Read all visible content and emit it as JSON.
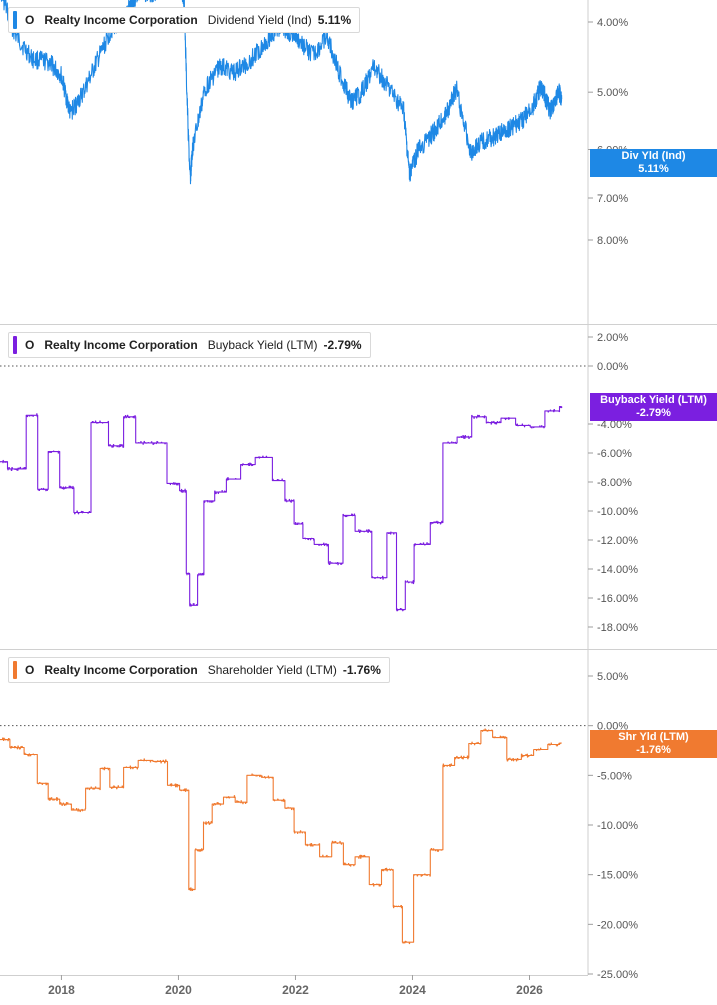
{
  "chart_data": [
    {
      "type": "line",
      "panel": "top",
      "ticker": "O",
      "company": "Realty Income Corporation",
      "metric": "Dividend Yield (Ind)",
      "current_value": "5.11%",
      "badge": {
        "label": "Div Yld (Ind)",
        "value": "5.11%"
      },
      "color": "#1e88e5",
      "scale": "log",
      "ylim": [
        3.0,
        9.0
      ],
      "yticks": [
        4,
        5,
        6,
        7,
        8
      ],
      "ytick_labels": [
        "4.00%",
        "5.00%",
        "6.00%",
        "7.00%",
        "8.00%"
      ],
      "zero_line": false,
      "step": false,
      "x": [
        2016.95,
        2017.2,
        2017.5,
        2017.8,
        2018.0,
        2018.15,
        2018.35,
        2018.6,
        2018.85,
        2019.1,
        2019.3,
        2019.55,
        2019.7,
        2019.95,
        2020.1,
        2020.2,
        2020.25,
        2020.45,
        2020.7,
        2020.95,
        2021.2,
        2021.5,
        2021.75,
        2022.0,
        2022.3,
        2022.55,
        2022.75,
        2022.95,
        2023.1,
        2023.35,
        2023.6,
        2023.85,
        2023.95,
        2024.1,
        2024.35,
        2024.55,
        2024.75,
        2025.0,
        2025.2,
        2025.45,
        2025.65,
        2025.85,
        2026.05,
        2026.2,
        2026.35,
        2026.5,
        2026.55
      ],
      "values": [
        3.6,
        4.15,
        4.5,
        4.55,
        4.75,
        5.35,
        5.05,
        4.55,
        4.1,
        3.9,
        3.65,
        3.65,
        3.6,
        3.35,
        3.75,
        6.6,
        5.9,
        4.95,
        4.6,
        4.7,
        4.55,
        4.25,
        4.05,
        4.2,
        4.45,
        4.2,
        4.7,
        5.15,
        5.05,
        4.6,
        4.95,
        5.3,
        6.5,
        6.0,
        5.7,
        5.4,
        4.95,
        6.05,
        5.85,
        5.75,
        5.6,
        5.5,
        5.25,
        4.9,
        5.3,
        5.0,
        5.11
      ]
    },
    {
      "type": "line",
      "panel": "middle",
      "ticker": "O",
      "company": "Realty Income Corporation",
      "metric": "Buyback Yield (LTM)",
      "current_value": "-2.79%",
      "badge": {
        "label": "Buyback Yield (LTM)",
        "value": "-2.79%"
      },
      "color": "#7b1fe0",
      "scale": "linear",
      "ylim": [
        -19,
        3
      ],
      "yticks": [
        2,
        0,
        -4,
        -6,
        -8,
        -10,
        -12,
        -14,
        -16,
        -18
      ],
      "ytick_labels": [
        "2.00%",
        "0.00%",
        "-4.00%",
        "-6.00%",
        "-8.00%",
        "-10.00%",
        "-12.00%",
        "-14.00%",
        "-16.00%",
        "-18.00%"
      ],
      "zero_line": true,
      "step": true,
      "x": [
        2016.95,
        2017.1,
        2017.45,
        2017.62,
        2017.8,
        2018.0,
        2018.25,
        2018.55,
        2018.85,
        2019.1,
        2019.3,
        2019.55,
        2019.85,
        2020.05,
        2020.15,
        2020.2,
        2020.35,
        2020.45,
        2020.65,
        2020.85,
        2021.1,
        2021.35,
        2021.65,
        2021.85,
        2022.0,
        2022.15,
        2022.35,
        2022.6,
        2022.85,
        2023.05,
        2023.35,
        2023.6,
        2023.75,
        2023.9,
        2024.05,
        2024.35,
        2024.55,
        2024.8,
        2025.05,
        2025.3,
        2025.55,
        2025.8,
        2026.05,
        2026.3,
        2026.55
      ],
      "values": [
        -6.6,
        -7.1,
        -3.4,
        -8.5,
        -5.9,
        -8.4,
        -10.1,
        -3.9,
        -5.5,
        -3.5,
        -5.3,
        -5.3,
        -8.1,
        -8.6,
        -14.3,
        -16.5,
        -14.4,
        -9.3,
        -8.7,
        -7.8,
        -6.8,
        -6.3,
        -7.9,
        -9.3,
        -10.9,
        -11.9,
        -12.3,
        -13.6,
        -10.3,
        -11.4,
        -14.6,
        -11.5,
        -16.8,
        -14.9,
        -12.3,
        -10.8,
        -5.3,
        -4.9,
        -3.5,
        -3.9,
        -3.6,
        -4.1,
        -4.2,
        -3.1,
        -2.79
      ]
    },
    {
      "type": "line",
      "panel": "bottom",
      "ticker": "O",
      "company": "Realty Income Corporation",
      "metric": "Shareholder Yield (LTM)",
      "current_value": "-1.76%",
      "badge": {
        "label": "Shr Yld (LTM)",
        "value": "-1.76%"
      },
      "color": "#f07a30",
      "scale": "linear",
      "ylim": [
        -25,
        7
      ],
      "yticks": [
        5,
        0,
        -5,
        -10,
        -15,
        -20,
        -25
      ],
      "ytick_labels": [
        "5.00%",
        "0.00%",
        "-5.00%",
        "-10.00%",
        "-15.00%",
        "-20.00%",
        "-25.00%"
      ],
      "zero_line": true,
      "step": true,
      "x": [
        2016.95,
        2017.15,
        2017.4,
        2017.62,
        2017.8,
        2018.0,
        2018.2,
        2018.45,
        2018.7,
        2018.85,
        2019.1,
        2019.35,
        2019.6,
        2019.85,
        2020.05,
        2020.2,
        2020.3,
        2020.45,
        2020.6,
        2020.8,
        2021.0,
        2021.2,
        2021.45,
        2021.65,
        2021.85,
        2022.0,
        2022.2,
        2022.45,
        2022.65,
        2022.85,
        2023.05,
        2023.3,
        2023.5,
        2023.7,
        2023.85,
        2024.05,
        2024.35,
        2024.55,
        2024.75,
        2025.0,
        2025.2,
        2025.4,
        2025.65,
        2025.9,
        2026.1,
        2026.35,
        2026.55
      ],
      "values": [
        -1.4,
        -2.2,
        -2.9,
        -5.8,
        -7.4,
        -7.9,
        -8.5,
        -6.3,
        -4.3,
        -6.2,
        -4.2,
        -3.5,
        -3.6,
        -6.0,
        -6.5,
        -16.5,
        -12.5,
        -9.8,
        -7.9,
        -7.2,
        -7.7,
        -5.0,
        -5.2,
        -7.5,
        -8.3,
        -10.7,
        -12.0,
        -13.2,
        -11.8,
        -14.0,
        -13.2,
        -16.0,
        -14.5,
        -18.2,
        -21.8,
        -15.0,
        -12.5,
        -4.0,
        -3.2,
        -1.8,
        -0.5,
        -1.2,
        -3.4,
        -3.0,
        -2.4,
        -1.9,
        -1.76
      ]
    }
  ],
  "x_axis": {
    "ticks": [
      2018,
      2020,
      2022,
      2024,
      2026
    ],
    "tick_labels": [
      "2018",
      "2020",
      "2022",
      "2024",
      "2026"
    ],
    "xlim": [
      2016.95,
      2027.0
    ]
  }
}
